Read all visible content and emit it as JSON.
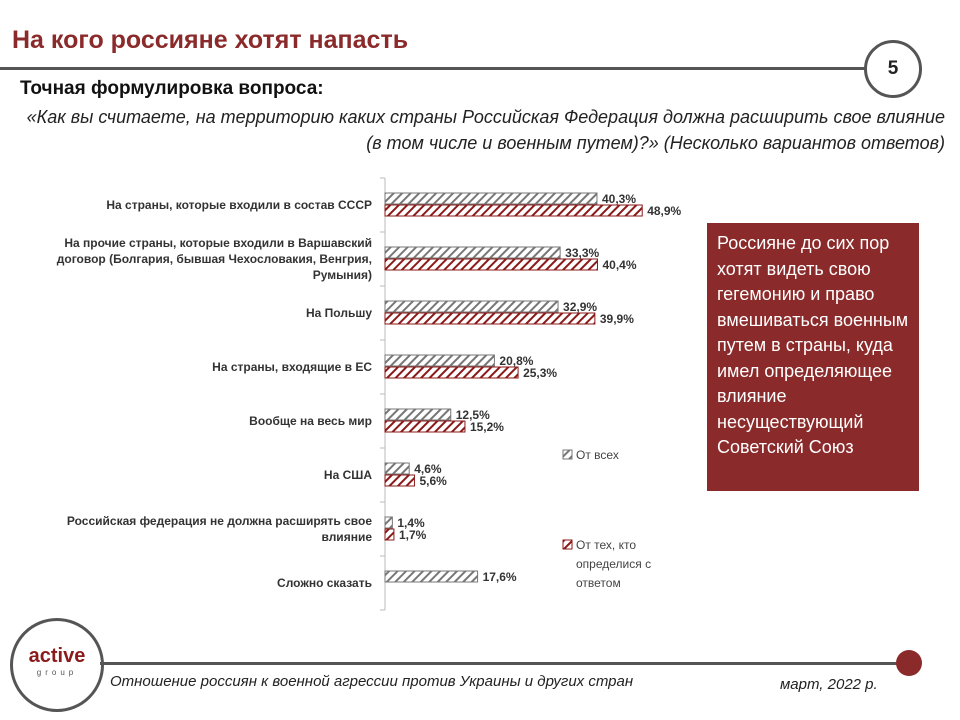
{
  "title": "На кого россияне хотят напасть",
  "page_number": "5",
  "question_heading": "Точная формулировка вопроса:",
  "question_text": "«Как вы считаете, на территорию каких страны Российская Федерация должна расширить свое влияние (в том числе и военным путем)?» (Несколько вариантов ответов)",
  "callout": "Россияне до сих пор хотят видеть свою гегемонию и право вмешиваться военным путем в страны, куда имел определяющее влияние несуществующий Советский Союз",
  "logo": {
    "main": "active",
    "sub": "group"
  },
  "footer": {
    "text": "Отношение россиян к военной агрессии против Украины и других стран",
    "date": "март, 2022 р."
  },
  "chart_data": {
    "type": "bar",
    "orientation": "horizontal",
    "categories": [
      [
        "На страны, которые входили в состав СССР"
      ],
      [
        "На прочие страны, которые входили в Варшавский",
        "договор (Болгария, бывшая Чехословакия, Венгрия,",
        "Румыния)"
      ],
      [
        "На Польшу"
      ],
      [
        "На страны, входящие в ЕС"
      ],
      [
        "Вообще на весь мир"
      ],
      [
        "На США"
      ],
      [
        "Российская федерация не должна расширять свое",
        "влияние"
      ],
      [
        "Сложно сказать"
      ]
    ],
    "series": [
      {
        "name": "От всех",
        "values": [
          40.3,
          33.3,
          32.9,
          20.8,
          12.5,
          4.6,
          1.4,
          17.6
        ],
        "labels": [
          "40,3%",
          "33,3%",
          "32,9%",
          "20,8%",
          "12,5%",
          "4,6%",
          "1,4%",
          "17,6%"
        ],
        "color": "#777777"
      },
      {
        "name": "От тех, кто определися с ответом",
        "legend_lines": [
          "От тех, кто",
          "определися с",
          "ответом"
        ],
        "values": [
          48.9,
          40.4,
          39.9,
          25.3,
          15.2,
          5.6,
          1.7,
          null
        ],
        "labels": [
          "48,9%",
          "40,4%",
          "39,9%",
          "25,3%",
          "15,2%",
          "5,6%",
          "1,7%",
          null
        ],
        "color": "#8b1a1a"
      }
    ],
    "xlim": [
      0,
      50
    ],
    "grid": false
  }
}
